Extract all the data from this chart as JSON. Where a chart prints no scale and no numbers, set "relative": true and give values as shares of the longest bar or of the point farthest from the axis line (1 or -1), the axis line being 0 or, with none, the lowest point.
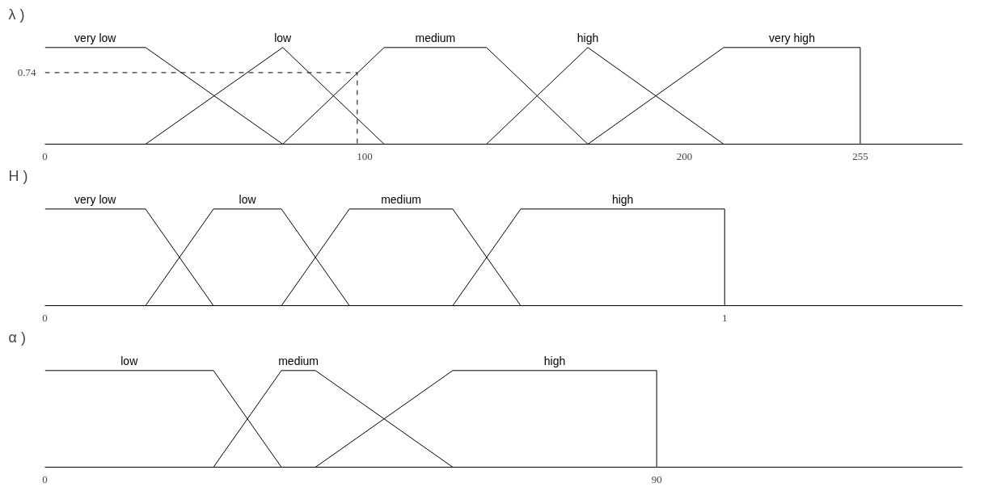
{
  "chart_data": [
    {
      "type": "line",
      "ylabel": "λ )",
      "relative": true,
      "xlim": [
        0,
        287
      ],
      "xticks": [
        0,
        100,
        200,
        255
      ],
      "grid": false,
      "legend": false,
      "marker": "none",
      "line_style": "solid",
      "annotations": [
        "0.74"
      ],
      "series": [
        {
          "name": "very low",
          "color": "#000000",
          "x": [
            0,
            31.5,
            74.4
          ],
          "values": [
            1,
            1,
            0
          ]
        },
        {
          "name": "low",
          "color": "#000000",
          "x": [
            31.5,
            74.4,
            106.1
          ],
          "values": [
            0,
            1,
            0
          ]
        },
        {
          "name": "medium",
          "color": "#000000",
          "x": [
            74.4,
            106.1,
            138.1,
            169.8
          ],
          "values": [
            0,
            1,
            1,
            0
          ]
        },
        {
          "name": "high",
          "color": "#000000",
          "x": [
            138.1,
            169.8,
            212.3
          ],
          "values": [
            0,
            1,
            0
          ]
        },
        {
          "name": "very high",
          "color": "#000000",
          "x": [
            169.8,
            212.3,
            255,
            255
          ],
          "values": [
            0,
            1,
            1,
            0
          ]
        },
        {
          "color": "#000000",
          "line_style": "dashed",
          "x": [
            0,
            97.7,
            97.7
          ],
          "values": [
            0.74,
            0.74,
            0
          ]
        }
      ]
    },
    {
      "type": "line",
      "ylabel": "H )",
      "relative": true,
      "xlim": [
        0,
        1.35
      ],
      "xticks": [
        0,
        1
      ],
      "grid": false,
      "legend": false,
      "marker": "none",
      "line_style": "solid",
      "series": [
        {
          "name": "very low",
          "color": "#000000",
          "x": [
            0,
            0.148,
            0.248
          ],
          "values": [
            1,
            1,
            0
          ]
        },
        {
          "name": "low",
          "color": "#000000",
          "x": [
            0.148,
            0.248,
            0.348,
            0.448
          ],
          "values": [
            0,
            1,
            1,
            0
          ]
        },
        {
          "name": "medium",
          "color": "#000000",
          "x": [
            0.348,
            0.448,
            0.6,
            0.7
          ],
          "values": [
            0,
            1,
            1,
            0
          ]
        },
        {
          "name": "high",
          "color": "#000000",
          "x": [
            0.6,
            0.7,
            1,
            1
          ],
          "values": [
            0,
            1,
            1,
            0
          ]
        }
      ]
    },
    {
      "type": "line",
      "ylabel": "α )",
      "relative": true,
      "xlim": [
        0,
        135
      ],
      "xticks": [
        0,
        90
      ],
      "grid": false,
      "legend": false,
      "marker": "none",
      "line_style": "solid",
      "series": [
        {
          "name": "low",
          "color": "#000000",
          "x": [
            0,
            24.8,
            34.8
          ],
          "values": [
            1,
            1,
            0
          ]
        },
        {
          "name": "medium",
          "color": "#000000",
          "x": [
            24.8,
            34.8,
            39.8,
            60
          ],
          "values": [
            0,
            1,
            1,
            0
          ]
        },
        {
          "name": "high",
          "color": "#000000",
          "x": [
            39.8,
            60,
            90,
            90
          ],
          "values": [
            0,
            1,
            1,
            0
          ]
        }
      ]
    }
  ]
}
